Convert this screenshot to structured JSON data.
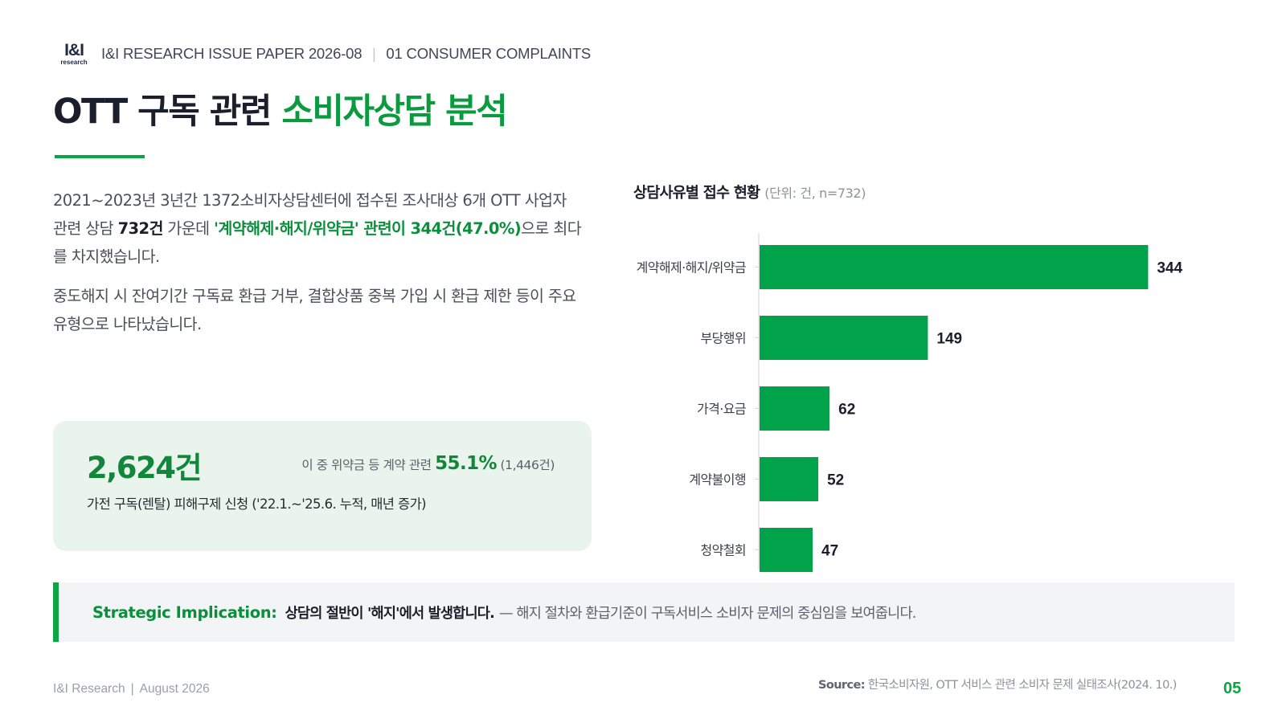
{
  "header": {
    "logo_text": "I&I",
    "logo_sub": "research",
    "issue_paper": "I&I RESEARCH ISSUE PAPER 2026-08",
    "separator": "|",
    "section": "01  CONSUMER COMPLAINTS"
  },
  "title": {
    "plain": "OTT 구독 관련 ",
    "highlight": "소비자상담 분석"
  },
  "description": {
    "p1_a": "2021~2023년 3년간 1372소비자상담센터에 접수된 조사대상 6개 OTT 사업자 관련 상담 ",
    "p1_bold": "732건",
    "p1_b": " 가운데 ",
    "p1_green": "'계약해제·해지/위약금' 관련이 344건(47.0%)",
    "p1_c": "으로 최다를 차지했습니다.",
    "p2": "중도해지 시 잔여기간 구독료 환급 거부, 결합상품 중복 가입 시 환급 제한 등이 주요 유형으로 나타났습니다."
  },
  "stat_card": {
    "value": "2,624건",
    "aside_prefix": "이 중 위약금 등 계약 관련 ",
    "aside_percent": "55.1%",
    "aside_suffix": " (1,446건)",
    "caption": "가전 구독(렌탈) 피해구제 신청 ('22.1.~'25.6. 누적, 매년 증가)"
  },
  "chart_heading": {
    "title": "상담사유별 접수 현황",
    "unit": "(단위: 건, n=732)"
  },
  "chart_data": {
    "type": "bar",
    "orientation": "horizontal",
    "categories": [
      "계약해제·해지/위약금",
      "부당행위",
      "가격·요금",
      "계약불이행",
      "청약철회"
    ],
    "values": [
      344,
      149,
      62,
      52,
      47
    ],
    "data_labels": [
      "344",
      "149",
      "62",
      "52",
      "47"
    ],
    "title": "상담사유별 접수 현황",
    "xlim": [
      0,
      370
    ],
    "grid": false,
    "bar_color": "#00a34a"
  },
  "implication": {
    "label": "Strategic Implication:",
    "headline": "상담의 절반이 '해지'에서 발생합니다.",
    "body": "— 해지 절차와 환급기준이 구독서비스 소비자 문제의 중심임을 보여줍니다."
  },
  "footer": {
    "brand": "I&I Research",
    "separator": "|",
    "date": "August 2026",
    "source_label": "Source:",
    "source_text": " 한국소비자원, OTT 서비스 관련 소비자 문제 실태조사(2024. 10.)",
    "page_number": "05"
  },
  "colors": {
    "accent": "#0ca544",
    "accent_dark": "#0b8f3c",
    "card_bg": "#e9f5ec",
    "implication_bg": "#f3f4f6"
  }
}
